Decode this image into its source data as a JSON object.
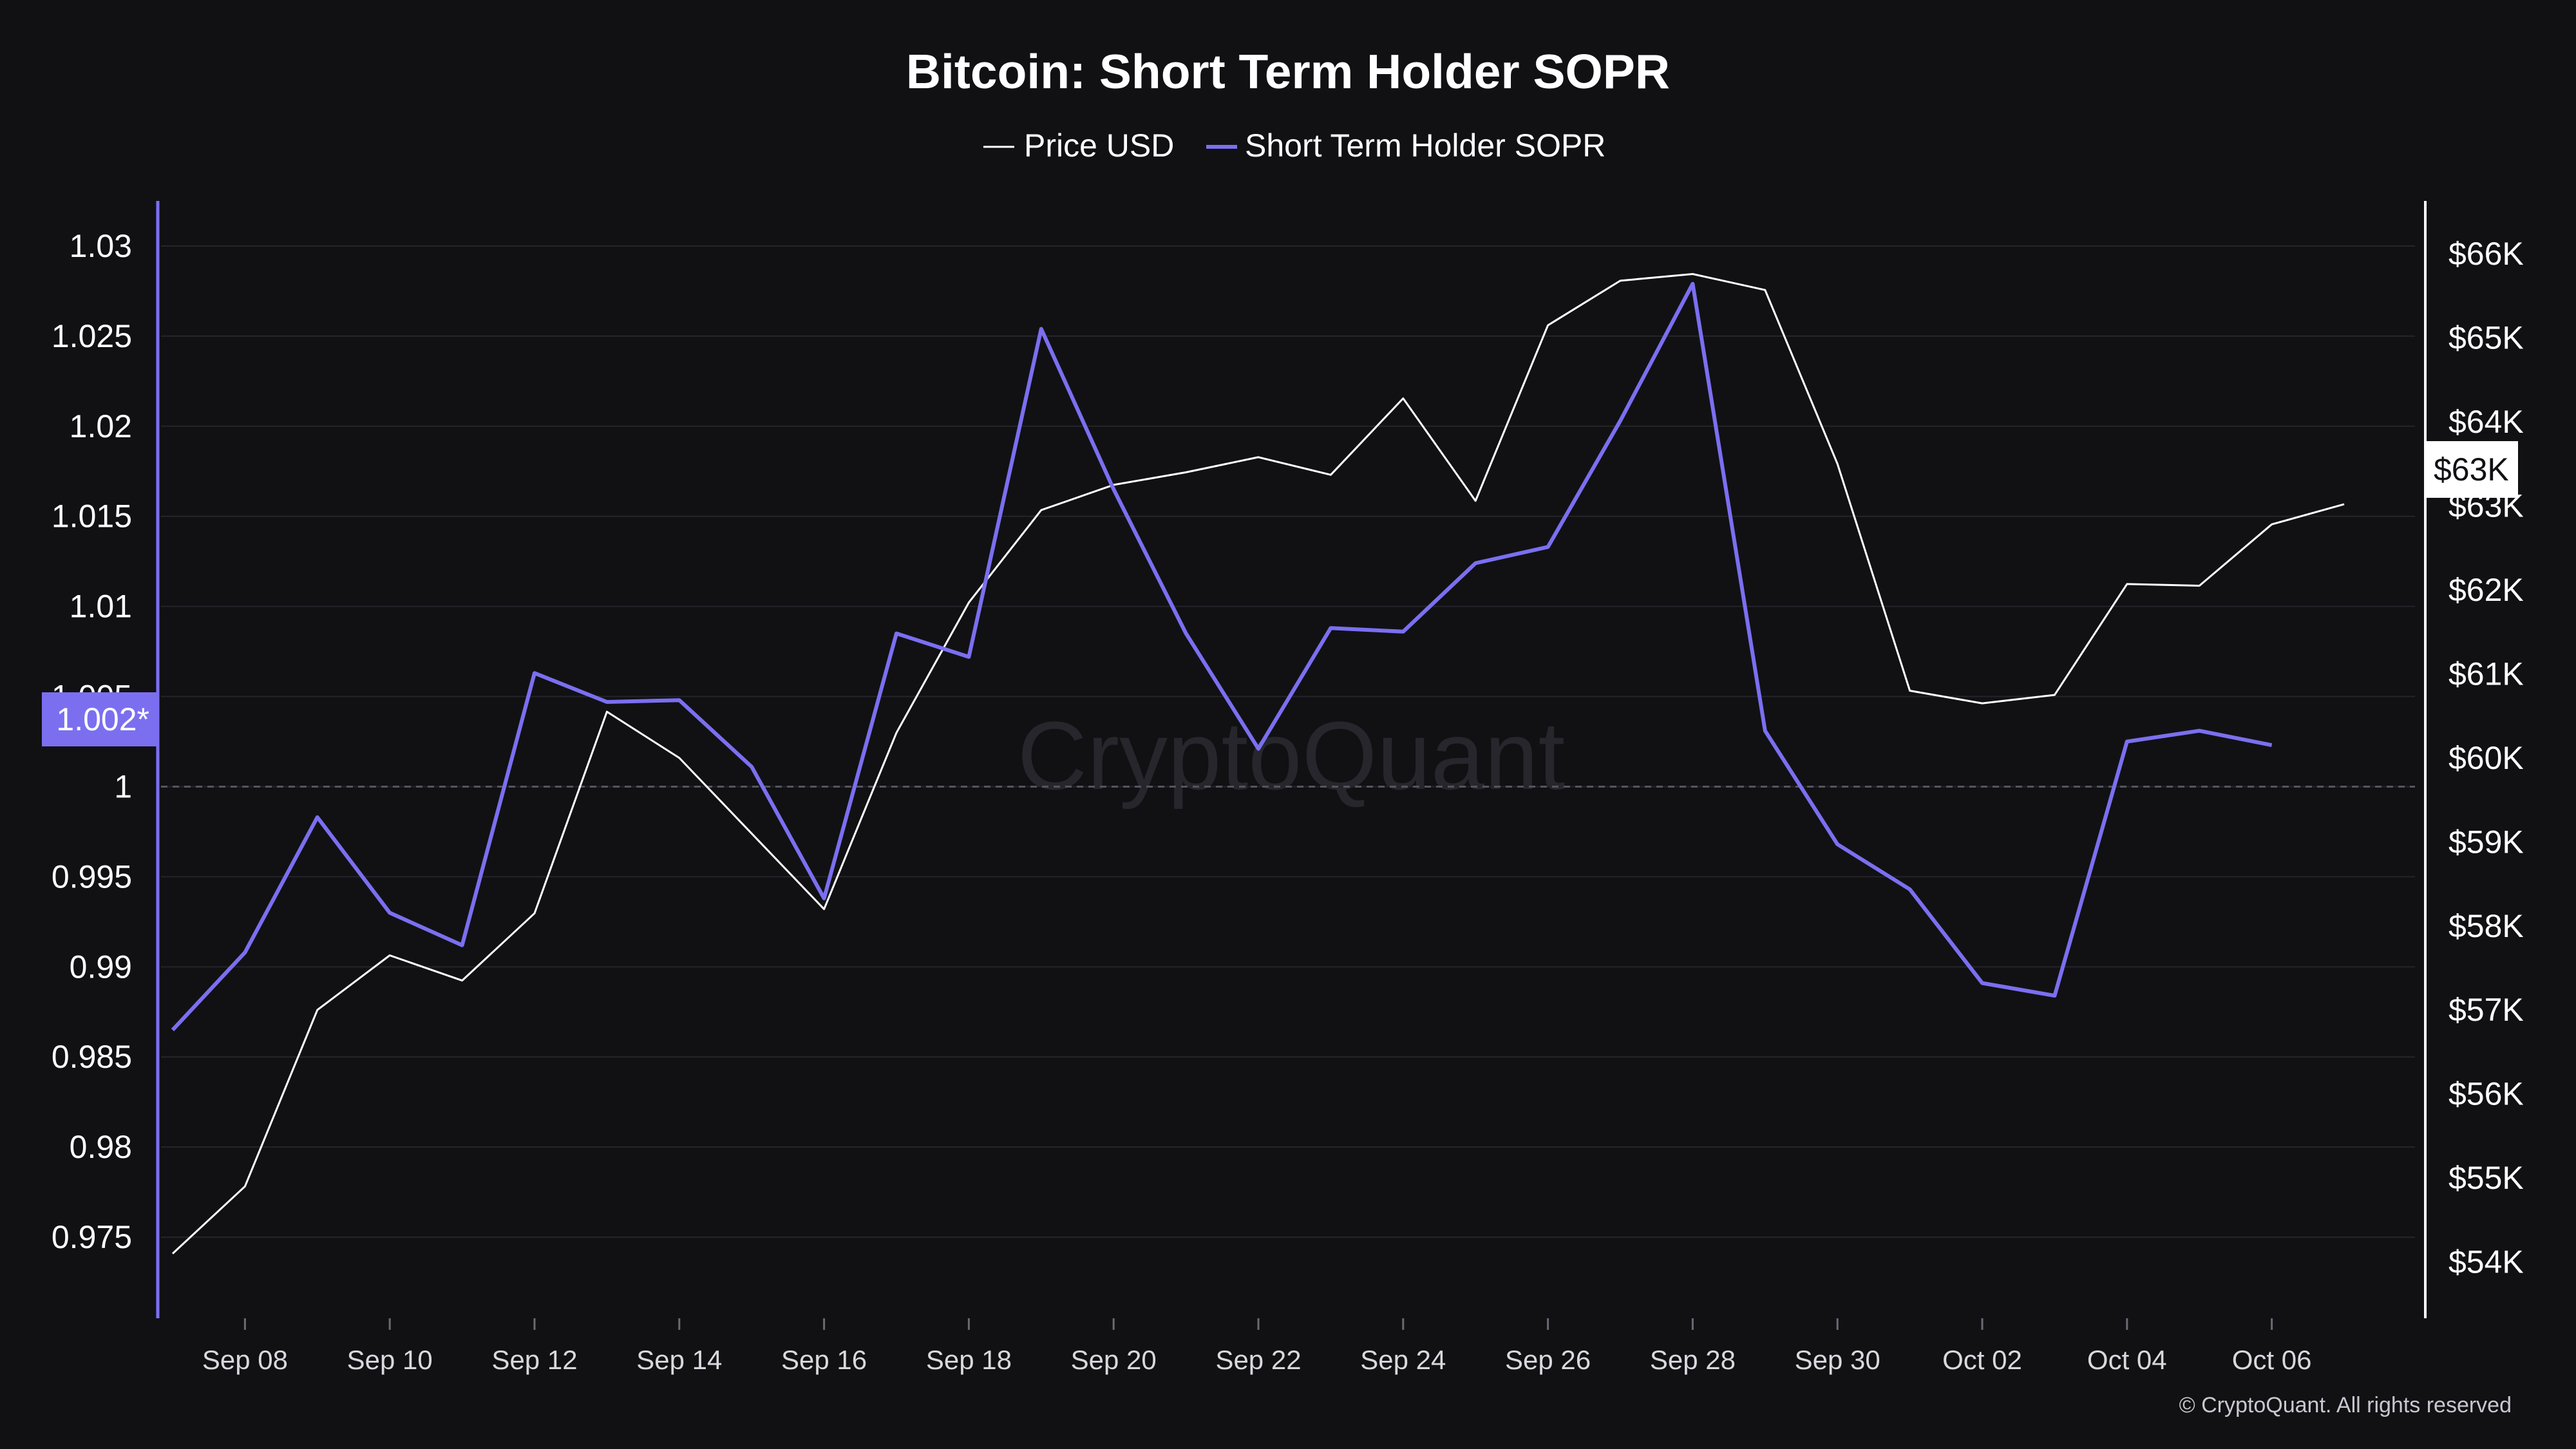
{
  "chart_data": {
    "type": "line",
    "title": "Bitcoin: Short Term Holder SOPR",
    "x": [
      "Sep 07",
      "Sep 08",
      "Sep 09",
      "Sep 10",
      "Sep 11",
      "Sep 12",
      "Sep 13",
      "Sep 14",
      "Sep 15",
      "Sep 16",
      "Sep 17",
      "Sep 18",
      "Sep 19",
      "Sep 20",
      "Sep 21",
      "Sep 22",
      "Sep 23",
      "Sep 24",
      "Sep 25",
      "Sep 26",
      "Sep 27",
      "Sep 28",
      "Sep 29",
      "Sep 30",
      "Oct 01",
      "Oct 02",
      "Oct 03",
      "Oct 04",
      "Oct 05",
      "Oct 06",
      "Oct 07"
    ],
    "x_tick_labels": [
      "Sep 08",
      "Sep 10",
      "Sep 12",
      "Sep 14",
      "Sep 16",
      "Sep 18",
      "Sep 20",
      "Sep 22",
      "Sep 24",
      "Sep 26",
      "Sep 28",
      "Sep 30",
      "Oct 02",
      "Oct 04",
      "Oct 06"
    ],
    "series": [
      {
        "name": "Price USD",
        "axis": "right",
        "color": "#ffffff",
        "values": [
          54100,
          54900,
          57000,
          57650,
          57350,
          58150,
          60550,
          60000,
          59100,
          58200,
          60300,
          61850,
          62950,
          63250,
          63400,
          63580,
          63370,
          64280,
          63060,
          65150,
          65680,
          65760,
          65570,
          63500,
          60800,
          60650,
          60750,
          62070,
          62050,
          62780,
          63020
        ]
      },
      {
        "name": "Short Term Holder SOPR",
        "axis": "left",
        "color": "#7b6ff0",
        "values": [
          0.9865,
          0.9908,
          0.9983,
          0.993,
          0.9912,
          1.0063,
          1.0047,
          1.0048,
          1.0011,
          0.9938,
          1.0085,
          1.0072,
          1.0254,
          1.0165,
          1.0085,
          1.0021,
          1.0088,
          1.0086,
          1.0124,
          1.0133,
          1.0203,
          1.0279,
          1.0031,
          0.9968,
          0.9943,
          0.9891,
          0.9884,
          1.0025,
          1.0031,
          1.0023,
          null
        ]
      }
    ],
    "y_left": {
      "ylim": [
        0.9705,
        1.0325
      ],
      "ticks": [
        0.975,
        0.98,
        0.985,
        0.99,
        0.995,
        1,
        1.005,
        1.01,
        1.015,
        1.02,
        1.025,
        1.03
      ],
      "tick_labels": [
        "0.975",
        "0.98",
        "0.985",
        "0.99",
        "0.995",
        "1",
        "1.005",
        "1.01",
        "1.015",
        "1.02",
        "1.025",
        "1.03"
      ]
    },
    "y_right": {
      "ylim": [
        53330,
        66630
      ],
      "ticks": [
        54000,
        55000,
        56000,
        57000,
        58000,
        59000,
        60000,
        61000,
        62000,
        63000,
        64000,
        65000,
        66000
      ],
      "tick_labels": [
        "$54K",
        "$55K",
        "$56K",
        "$57K",
        "$58K",
        "$59K",
        "$60K",
        "$61K",
        "$62K",
        "$63K",
        "$64K",
        "$65K",
        "$66K"
      ]
    },
    "reference_line": 1,
    "badges": {
      "left": "1.002*",
      "right": "$63K"
    },
    "grid": true,
    "legend_position": "top-center"
  },
  "watermark": "CryptoQuant",
  "copyright": "© CryptoQuant. All rights reserved",
  "colors": {
    "background": "#111114",
    "sopr": "#7b6ff0",
    "price": "#ffffff",
    "grid": "#24242a"
  }
}
